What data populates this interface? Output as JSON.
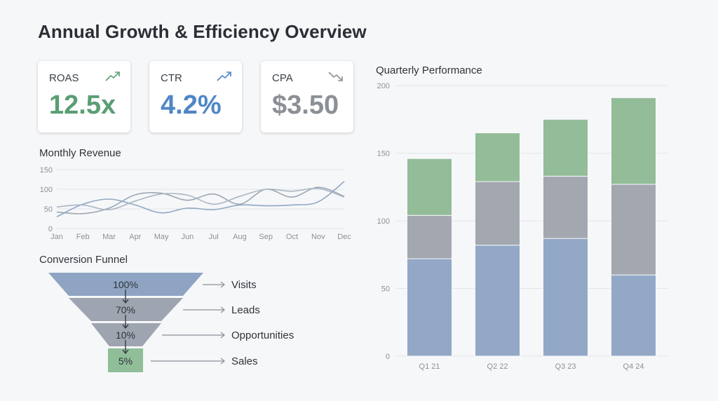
{
  "header": {
    "title": "Annual Growth & Efficiency Overview"
  },
  "kpis": [
    {
      "label": "ROAS",
      "value": "12.5x",
      "trend": "up",
      "icon": "trend-up-icon",
      "color": "#5a9e73"
    },
    {
      "label": "CTR",
      "value": "4.2%",
      "trend": "up",
      "icon": "trend-up-icon",
      "color": "#4f86c6"
    },
    {
      "label": "CPA",
      "value": "$3.50",
      "trend": "down",
      "icon": "trend-down-icon",
      "color": "#8a9096"
    }
  ],
  "monthly_revenue": {
    "label": "Monthly Revenue"
  },
  "funnel": {
    "label": "Conversion Funnel",
    "stages": [
      {
        "percent": "100%",
        "label": "Visits",
        "color": "#8fa4c2"
      },
      {
        "percent": "70%",
        "label": "Leads",
        "color": "#9ea4b0"
      },
      {
        "percent": "10%",
        "label": "Opportunities",
        "color": "#9ea4b0"
      },
      {
        "percent": "5%",
        "label": "Sales",
        "color": "#8fbe98"
      }
    ]
  },
  "quarterly": {
    "label": "Quarterly Performance"
  },
  "chart_data": [
    {
      "type": "line",
      "title": "Monthly Revenue",
      "categories": [
        "Jan",
        "Feb",
        "Mar",
        "Apr",
        "May",
        "Jun",
        "Jul",
        "Aug",
        "Sep",
        "Oct",
        "Nov",
        "Dec"
      ],
      "ylim": [
        0,
        150
      ],
      "yticks": [
        0,
        50,
        100,
        150
      ],
      "grid": true,
      "series": [
        {
          "color": "#8fa8c4",
          "values": [
            30,
            62,
            75,
            60,
            40,
            52,
            48,
            60,
            58,
            60,
            68,
            120
          ]
        },
        {
          "color": "#9aa7b3",
          "values": [
            42,
            38,
            52,
            86,
            90,
            72,
            88,
            62,
            100,
            80,
            105,
            82
          ]
        },
        {
          "color": "#aab6c4",
          "values": [
            55,
            60,
            48,
            70,
            88,
            85,
            62,
            82,
            100,
            95,
            102,
            80
          ]
        }
      ]
    },
    {
      "type": "bar",
      "stacked": true,
      "title": "Quarterly Performance",
      "categories": [
        "Q1 21",
        "Q2 22",
        "Q3 23",
        "Q4 24"
      ],
      "ylim": [
        0,
        200
      ],
      "yticks": [
        0,
        50,
        100,
        150,
        200
      ],
      "grid": true,
      "series": [
        {
          "color": "#93a8c6",
          "values": [
            72,
            82,
            87,
            60
          ]
        },
        {
          "color": "#a2a7b0",
          "values": [
            32,
            47,
            46,
            67
          ]
        },
        {
          "color": "#93bc98",
          "values": [
            42,
            36,
            42,
            64
          ]
        }
      ]
    }
  ]
}
